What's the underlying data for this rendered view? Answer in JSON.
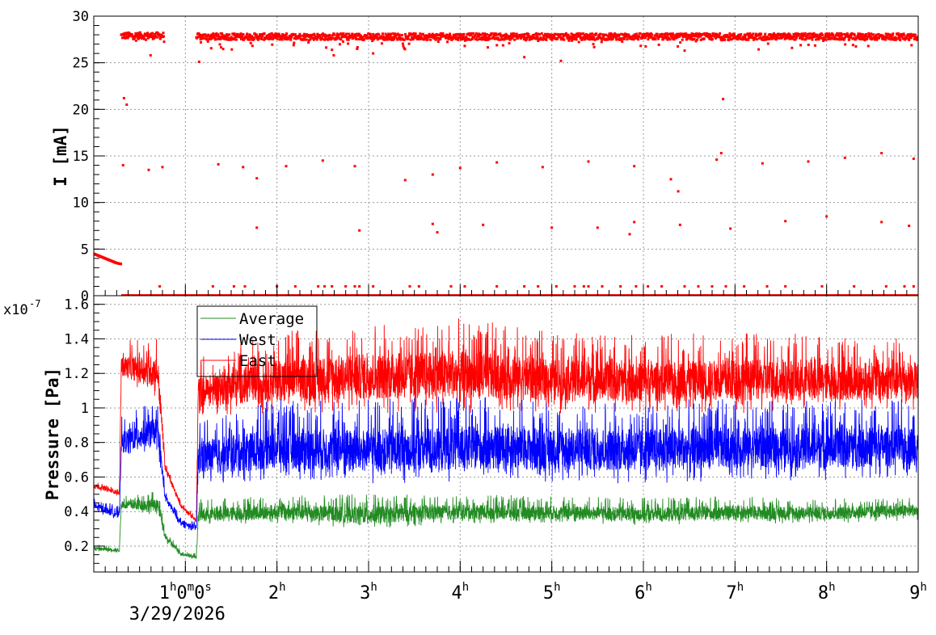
{
  "chart_data": [
    {
      "type": "scatter",
      "ylabel": "I [mA]",
      "ylim": [
        0,
        30
      ],
      "yticks": [
        "0",
        "5",
        "10",
        "15",
        "20",
        "25",
        "30"
      ],
      "x_unit": "hours",
      "xlim": [
        0,
        9
      ],
      "grid": true,
      "marker_color": "#ff0000",
      "series": [
        {
          "segments": [
            {
              "x": [
                0.0,
                0.05,
                0.1,
                0.15,
                0.2,
                0.25,
                0.3
              ],
              "y": [
                4.5,
                4.3,
                4.1,
                3.9,
                3.7,
                3.5,
                3.4
              ]
            },
            {
              "x_range": [
                0.3,
                0.77
              ],
              "level": 27.9,
              "jitter": 0.35
            },
            {
              "x_range": [
                1.12,
                9.0
              ],
              "level": 27.8,
              "jitter": 0.35
            }
          ],
          "outliers": [
            {
              "x": 0.33,
              "y": 21.2
            },
            {
              "x": 0.36,
              "y": 20.5
            },
            {
              "x": 0.32,
              "y": 14.0
            },
            {
              "x": 0.6,
              "y": 13.5
            },
            {
              "x": 0.75,
              "y": 13.8
            },
            {
              "x": 0.62,
              "y": 25.8
            },
            {
              "x": 1.15,
              "y": 25.1
            },
            {
              "x": 1.36,
              "y": 14.1
            },
            {
              "x": 1.63,
              "y": 13.8
            },
            {
              "x": 1.78,
              "y": 12.6
            },
            {
              "x": 2.1,
              "y": 13.9
            },
            {
              "x": 2.5,
              "y": 14.5
            },
            {
              "x": 2.85,
              "y": 13.9
            },
            {
              "x": 3.4,
              "y": 12.4
            },
            {
              "x": 3.7,
              "y": 13.0
            },
            {
              "x": 4.0,
              "y": 13.7
            },
            {
              "x": 4.4,
              "y": 14.3
            },
            {
              "x": 4.9,
              "y": 13.8
            },
            {
              "x": 5.4,
              "y": 14.4
            },
            {
              "x": 5.9,
              "y": 13.9
            },
            {
              "x": 6.3,
              "y": 12.5
            },
            {
              "x": 6.38,
              "y": 11.2
            },
            {
              "x": 6.8,
              "y": 14.6
            },
            {
              "x": 6.85,
              "y": 15.3
            },
            {
              "x": 7.3,
              "y": 14.2
            },
            {
              "x": 7.8,
              "y": 14.4
            },
            {
              "x": 8.2,
              "y": 14.8
            },
            {
              "x": 8.6,
              "y": 15.3
            },
            {
              "x": 8.95,
              "y": 14.7
            },
            {
              "x": 6.87,
              "y": 21.1
            },
            {
              "x": 1.78,
              "y": 7.3
            },
            {
              "x": 2.9,
              "y": 7.0
            },
            {
              "x": 3.7,
              "y": 7.7
            },
            {
              "x": 3.75,
              "y": 6.8
            },
            {
              "x": 4.25,
              "y": 7.6
            },
            {
              "x": 5.0,
              "y": 7.3
            },
            {
              "x": 5.5,
              "y": 7.3
            },
            {
              "x": 5.85,
              "y": 6.6
            },
            {
              "x": 5.9,
              "y": 7.9
            },
            {
              "x": 6.4,
              "y": 7.6
            },
            {
              "x": 6.95,
              "y": 7.2
            },
            {
              "x": 7.55,
              "y": 8.0
            },
            {
              "x": 8.0,
              "y": 8.5
            },
            {
              "x": 8.6,
              "y": 7.9
            },
            {
              "x": 8.9,
              "y": 7.5
            },
            {
              "x": 2.62,
              "y": 25.8
            },
            {
              "x": 5.1,
              "y": 25.2
            },
            {
              "x": 4.7,
              "y": 25.6
            },
            {
              "x": 6.45,
              "y": 26.3
            },
            {
              "x": 3.05,
              "y": 26.0
            }
          ],
          "near_zero_x": [
            0.72,
            1.3,
            1.53,
            1.65,
            2.0,
            2.2,
            2.45,
            2.52,
            2.6,
            2.75,
            2.85,
            2.9,
            3.05,
            3.45,
            3.55,
            3.9,
            4.05,
            4.4,
            4.7,
            4.85,
            5.05,
            5.25,
            5.35,
            5.4,
            5.55,
            5.75,
            5.92,
            6.05,
            6.2,
            6.45,
            6.6,
            6.75,
            6.9,
            7.1,
            7.35,
            7.55,
            7.95,
            8.3,
            8.65,
            8.85,
            8.95
          ]
        }
      ]
    },
    {
      "type": "line",
      "ylabel": "Pressure [Pa]",
      "y_scale_label": "x10",
      "y_scale_exponent": "-7",
      "ylim": [
        0.05,
        1.65
      ],
      "yticks": [
        "0.2",
        "0.4",
        "0.6",
        "0.8",
        "1",
        "1.2",
        "1.4",
        "1.6"
      ],
      "x_unit": "hours",
      "xlim": [
        0,
        9
      ],
      "xticks": [
        {
          "x": 1,
          "h": "1",
          "m": "0",
          "s": "0",
          "date": "3/29/2026"
        },
        {
          "x": 2,
          "h": "2"
        },
        {
          "x": 3,
          "h": "3"
        },
        {
          "x": 4,
          "h": "4"
        },
        {
          "x": 5,
          "h": "5"
        },
        {
          "x": 6,
          "h": "6"
        },
        {
          "x": 7,
          "h": "7"
        },
        {
          "x": 8,
          "h": "8"
        },
        {
          "x": 9,
          "h": "9"
        }
      ],
      "grid": true,
      "legend": {
        "placement": "top-left",
        "entries": [
          {
            "name": "Average",
            "color": "#228b22"
          },
          {
            "name": "West",
            "color": "#0000ff"
          },
          {
            "name": "East",
            "color": "#ff0000"
          }
        ]
      },
      "series": [
        {
          "name": "East",
          "color": "#ff0000",
          "envelope": [
            {
              "x": 0.0,
              "lo": 0.53,
              "hi": 0.58
            },
            {
              "x": 0.28,
              "lo": 0.49,
              "hi": 0.53
            },
            {
              "x": 0.3,
              "lo": 1.15,
              "hi": 1.38
            },
            {
              "x": 0.7,
              "lo": 1.05,
              "hi": 1.44
            },
            {
              "x": 0.78,
              "lo": 0.62,
              "hi": 0.7
            },
            {
              "x": 0.95,
              "lo": 0.42,
              "hi": 0.46
            },
            {
              "x": 1.12,
              "lo": 0.33,
              "hi": 0.37
            },
            {
              "x": 1.14,
              "lo": 0.95,
              "hi": 1.3
            },
            {
              "x": 2.0,
              "lo": 0.97,
              "hi": 1.45
            },
            {
              "x": 3.0,
              "lo": 0.97,
              "hi": 1.5
            },
            {
              "x": 4.0,
              "lo": 0.97,
              "hi": 1.52
            },
            {
              "x": 5.0,
              "lo": 0.97,
              "hi": 1.45
            },
            {
              "x": 6.0,
              "lo": 0.97,
              "hi": 1.42
            },
            {
              "x": 7.0,
              "lo": 0.97,
              "hi": 1.45
            },
            {
              "x": 8.0,
              "lo": 0.98,
              "hi": 1.42
            },
            {
              "x": 9.0,
              "lo": 0.98,
              "hi": 1.42
            }
          ]
        },
        {
          "name": "West",
          "color": "#0000ff",
          "envelope": [
            {
              "x": 0.0,
              "lo": 0.4,
              "hi": 0.48
            },
            {
              "x": 0.28,
              "lo": 0.35,
              "hi": 0.43
            },
            {
              "x": 0.3,
              "lo": 0.7,
              "hi": 0.95
            },
            {
              "x": 0.7,
              "lo": 0.75,
              "hi": 1.05
            },
            {
              "x": 0.78,
              "lo": 0.45,
              "hi": 0.52
            },
            {
              "x": 0.95,
              "lo": 0.31,
              "hi": 0.37
            },
            {
              "x": 1.12,
              "lo": 0.28,
              "hi": 0.34
            },
            {
              "x": 1.14,
              "lo": 0.55,
              "hi": 0.95
            },
            {
              "x": 2.0,
              "lo": 0.58,
              "hi": 1.05
            },
            {
              "x": 3.0,
              "lo": 0.55,
              "hi": 1.05
            },
            {
              "x": 4.0,
              "lo": 0.57,
              "hi": 1.07
            },
            {
              "x": 5.0,
              "lo": 0.57,
              "hi": 1.05
            },
            {
              "x": 6.0,
              "lo": 0.56,
              "hi": 1.05
            },
            {
              "x": 7.0,
              "lo": 0.58,
              "hi": 1.05
            },
            {
              "x": 8.0,
              "lo": 0.58,
              "hi": 1.05
            },
            {
              "x": 9.0,
              "lo": 0.6,
              "hi": 1.05
            }
          ]
        },
        {
          "name": "Average",
          "color": "#228b22",
          "envelope": [
            {
              "x": 0.0,
              "lo": 0.17,
              "hi": 0.21
            },
            {
              "x": 0.28,
              "lo": 0.16,
              "hi": 0.2
            },
            {
              "x": 0.3,
              "lo": 0.4,
              "hi": 0.5
            },
            {
              "x": 0.7,
              "lo": 0.38,
              "hi": 0.52
            },
            {
              "x": 0.78,
              "lo": 0.22,
              "hi": 0.3
            },
            {
              "x": 0.95,
              "lo": 0.14,
              "hi": 0.18
            },
            {
              "x": 1.12,
              "lo": 0.12,
              "hi": 0.16
            },
            {
              "x": 1.14,
              "lo": 0.32,
              "hi": 0.47
            },
            {
              "x": 2.0,
              "lo": 0.33,
              "hi": 0.5
            },
            {
              "x": 3.0,
              "lo": 0.3,
              "hi": 0.5
            },
            {
              "x": 4.0,
              "lo": 0.33,
              "hi": 0.5
            },
            {
              "x": 5.0,
              "lo": 0.33,
              "hi": 0.49
            },
            {
              "x": 6.0,
              "lo": 0.32,
              "hi": 0.48
            },
            {
              "x": 7.0,
              "lo": 0.33,
              "hi": 0.49
            },
            {
              "x": 8.0,
              "lo": 0.33,
              "hi": 0.48
            },
            {
              "x": 9.0,
              "lo": 0.35,
              "hi": 0.49
            }
          ]
        }
      ]
    }
  ]
}
